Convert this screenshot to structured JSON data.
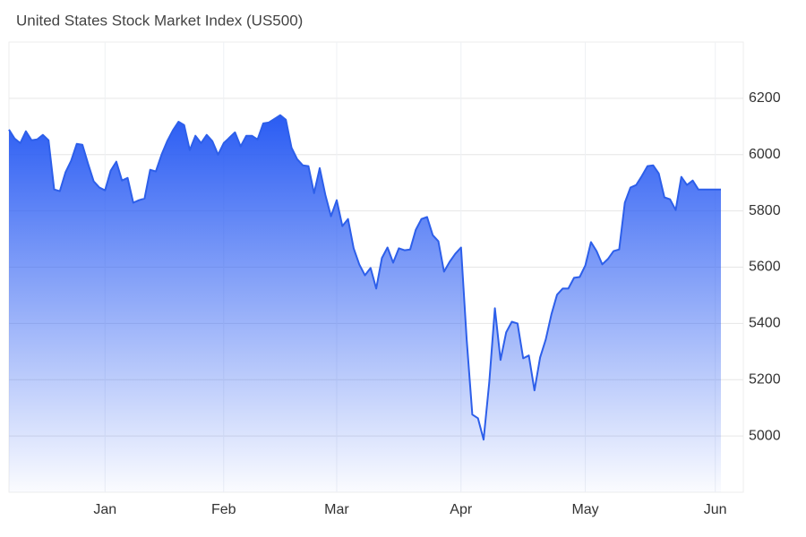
{
  "chart_data": {
    "type": "area",
    "title": "United States Stock Market Index (US500)",
    "categories": [
      null,
      null,
      null,
      null,
      null,
      null,
      null,
      null,
      null,
      null,
      null,
      null,
      null,
      null,
      null,
      null,
      null,
      "Jan",
      null,
      null,
      null,
      null,
      null,
      null,
      null,
      null,
      null,
      null,
      null,
      null,
      null,
      null,
      null,
      null,
      null,
      null,
      null,
      null,
      "Feb",
      null,
      null,
      null,
      null,
      null,
      null,
      null,
      null,
      null,
      null,
      null,
      null,
      null,
      null,
      null,
      null,
      null,
      null,
      null,
      "Mar",
      null,
      null,
      null,
      null,
      null,
      null,
      null,
      null,
      null,
      null,
      null,
      null,
      null,
      null,
      null,
      null,
      null,
      null,
      null,
      null,
      null,
      "Apr",
      null,
      null,
      null,
      null,
      null,
      null,
      null,
      null,
      null,
      null,
      null,
      null,
      null,
      null,
      null,
      null,
      null,
      null,
      null,
      null,
      null,
      "May",
      null,
      null,
      null,
      null,
      null,
      null,
      null,
      null,
      null,
      null,
      null,
      null,
      null,
      null,
      null,
      null,
      null,
      null,
      null,
      null,
      null,
      null,
      "Jun",
      null
    ],
    "values": [
      6089,
      6057,
      6041,
      6083,
      6051,
      6054,
      6070,
      6051,
      5876,
      5870,
      5937,
      5978,
      6038,
      6035,
      5968,
      5905,
      5883,
      5873,
      5943,
      5975,
      5908,
      5917,
      5829,
      5838,
      5844,
      5946,
      5940,
      6000,
      6048,
      6086,
      6117,
      6105,
      6016,
      6067,
      6041,
      6070,
      6048,
      6000,
      6041,
      6060,
      6079,
      6029,
      6067,
      6067,
      6054,
      6111,
      6114,
      6127,
      6140,
      6124,
      6025,
      5984,
      5962,
      5959,
      5863,
      5952,
      5857,
      5781,
      5838,
      5746,
      5771,
      5667,
      5610,
      5571,
      5597,
      5524,
      5632,
      5670,
      5616,
      5667,
      5660,
      5663,
      5733,
      5771,
      5778,
      5714,
      5692,
      5584,
      5619,
      5648,
      5670,
      5343,
      5076,
      5063,
      4987,
      5190,
      5454,
      5270,
      5368,
      5406,
      5400,
      5276,
      5286,
      5162,
      5279,
      5343,
      5432,
      5502,
      5524,
      5524,
      5562,
      5565,
      5606,
      5689,
      5657,
      5610,
      5629,
      5657,
      5663,
      5829,
      5883,
      5892,
      5924,
      5959,
      5962,
      5933,
      5848,
      5841,
      5803,
      5921,
      5892,
      5908,
      5876,
      5876,
      5876,
      5876,
      5876
    ],
    "color": "#2d5fea",
    "ylim": [
      4800,
      6400
    ],
    "yticks": [
      5000,
      5200,
      5400,
      5600,
      5800,
      6000,
      6200
    ],
    "grid": true
  }
}
